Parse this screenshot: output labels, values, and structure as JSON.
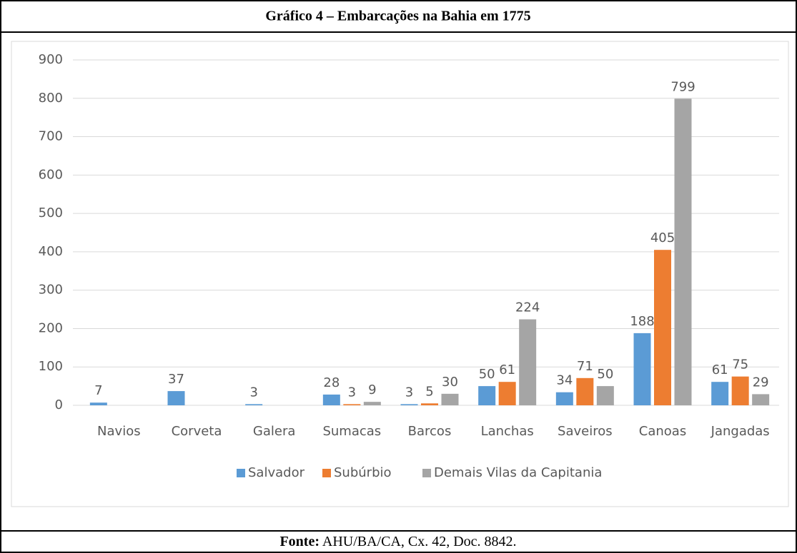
{
  "chart_data": {
    "type": "bar",
    "title": "Gráfico 4 – Embarcações na Bahia em 1775",
    "source_label": "Fonte:",
    "source": "AHU/BA/CA, Cx. 42, Doc. 8842.",
    "categories": [
      "Navios",
      "Corveta",
      "Galera",
      "Sumacas",
      "Barcos",
      "Lanchas",
      "Saveiros",
      "Canoas",
      "Jangadas"
    ],
    "series": [
      {
        "name": "Salvador",
        "color": "#5b9bd5",
        "values": [
          7,
          37,
          3,
          28,
          3,
          50,
          34,
          188,
          61
        ]
      },
      {
        "name": "Subúrbio",
        "color": "#ed7d31",
        "values": [
          null,
          null,
          null,
          3,
          5,
          61,
          71,
          405,
          75
        ]
      },
      {
        "name": "Demais Vilas da Capitania",
        "color": "#a5a5a5",
        "values": [
          null,
          null,
          null,
          9,
          30,
          224,
          50,
          799,
          29
        ]
      }
    ],
    "ylim": [
      0,
      900
    ],
    "yticks": [
      0,
      100,
      200,
      300,
      400,
      500,
      600,
      700,
      800,
      900
    ],
    "grid": true,
    "legend": "bottom"
  }
}
